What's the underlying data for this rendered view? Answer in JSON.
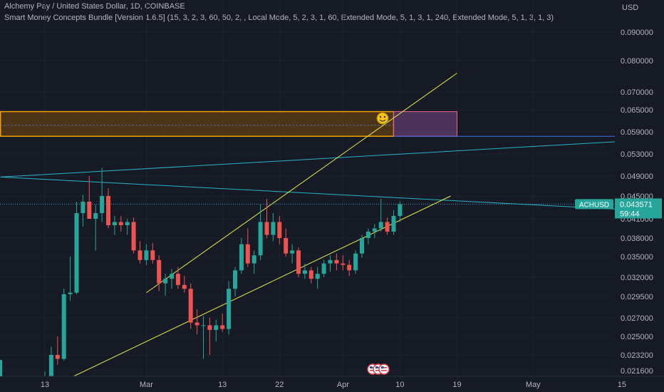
{
  "header": {
    "title": "Alchemy Pay / United States Dollar, 1D, COINBASE",
    "indicator": "Smart Money Concepts Bundle [Version 1.6.5] (15, 3, 2, 3, 60, 50, 2, , Local Mode, 5, 2, 3, 1, 60, Extended Mode, 5, 1, 3, 1, 240, Extended Mode, 5, 1, 3, 1, 3)"
  },
  "price_axis": {
    "currency": "USD",
    "ticks": [
      "0.090000",
      "0.080000",
      "0.070000",
      "0.065000",
      "0.059000",
      "0.053000",
      "0.049000",
      "0.045000",
      "0.041000",
      "0.038000",
      "0.035000",
      "0.032000",
      "0.029500",
      "0.027000",
      "0.025000",
      "0.023200",
      "0.021600"
    ]
  },
  "time_axis": {
    "labels": [
      "13",
      "Mar",
      "13",
      "22",
      "Apr",
      "10",
      "19",
      "May",
      "15"
    ]
  },
  "symbol_badge": {
    "symbol": "ACHUSD",
    "price": "0.043571",
    "countdown": "59:44"
  },
  "colors": {
    "background": "#161a25",
    "grid": "#1f2330",
    "up": "#26a69a",
    "down": "#ef5350",
    "channel": "#e8e84a",
    "trendline": "#26b3c9",
    "order_block_border": "#f0a000",
    "order_block_fill": "#7a4a0c",
    "pink_box": "#f06090",
    "blue_line": "#3f6ff0",
    "price_line": "#3aa0d8"
  },
  "chart_data": {
    "type": "candlestick",
    "symbol": "ACHUSD",
    "timeframe": "1D",
    "exchange": "COINBASE",
    "last_price": 0.043571,
    "candles": [
      {
        "date": "2023-02-12",
        "open": 0.0196,
        "high": 0.0205,
        "low": 0.0185,
        "close": 0.0199
      },
      {
        "date": "2023-02-13",
        "open": 0.0199,
        "high": 0.0215,
        "low": 0.0192,
        "close": 0.0206
      },
      {
        "date": "2023-02-14",
        "open": 0.0206,
        "high": 0.024,
        "low": 0.0202,
        "close": 0.0232
      },
      {
        "date": "2023-02-15",
        "open": 0.0232,
        "high": 0.025,
        "low": 0.0222,
        "close": 0.0228
      },
      {
        "date": "2023-02-16",
        "open": 0.0228,
        "high": 0.0305,
        "low": 0.0226,
        "close": 0.0298
      },
      {
        "date": "2023-02-17",
        "open": 0.0298,
        "high": 0.035,
        "low": 0.029,
        "close": 0.03
      },
      {
        "date": "2023-02-18",
        "open": 0.03,
        "high": 0.044,
        "low": 0.0298,
        "close": 0.042
      },
      {
        "date": "2023-02-19",
        "open": 0.042,
        "high": 0.0452,
        "low": 0.0398,
        "close": 0.044
      },
      {
        "date": "2023-02-20",
        "open": 0.044,
        "high": 0.049,
        "low": 0.041,
        "close": 0.041
      },
      {
        "date": "2023-02-21",
        "open": 0.041,
        "high": 0.0435,
        "low": 0.036,
        "close": 0.042
      },
      {
        "date": "2023-02-22",
        "open": 0.042,
        "high": 0.0505,
        "low": 0.0405,
        "close": 0.045
      },
      {
        "date": "2023-02-23",
        "open": 0.045,
        "high": 0.0465,
        "low": 0.0395,
        "close": 0.04
      },
      {
        "date": "2023-02-24",
        "open": 0.04,
        "high": 0.0415,
        "low": 0.0385,
        "close": 0.0405
      },
      {
        "date": "2023-02-25",
        "open": 0.0405,
        "high": 0.0415,
        "low": 0.039,
        "close": 0.04
      },
      {
        "date": "2023-02-26",
        "open": 0.04,
        "high": 0.041,
        "low": 0.0385,
        "close": 0.0405
      },
      {
        "date": "2023-02-27",
        "open": 0.0405,
        "high": 0.0412,
        "low": 0.0355,
        "close": 0.036
      },
      {
        "date": "2023-02-28",
        "open": 0.036,
        "high": 0.0375,
        "low": 0.034,
        "close": 0.0345
      },
      {
        "date": "2023-03-01",
        "open": 0.0345,
        "high": 0.037,
        "low": 0.0338,
        "close": 0.036
      },
      {
        "date": "2023-03-02",
        "open": 0.036,
        "high": 0.0372,
        "low": 0.034,
        "close": 0.0345
      },
      {
        "date": "2023-03-03",
        "open": 0.0345,
        "high": 0.0352,
        "low": 0.0302,
        "close": 0.0312
      },
      {
        "date": "2023-03-04",
        "open": 0.0312,
        "high": 0.0325,
        "low": 0.0296,
        "close": 0.0318
      },
      {
        "date": "2023-03-05",
        "open": 0.0318,
        "high": 0.0332,
        "low": 0.0305,
        "close": 0.0325
      },
      {
        "date": "2023-03-06",
        "open": 0.0325,
        "high": 0.0335,
        "low": 0.0305,
        "close": 0.031
      },
      {
        "date": "2023-03-07",
        "open": 0.031,
        "high": 0.0322,
        "low": 0.03,
        "close": 0.0305
      },
      {
        "date": "2023-03-08",
        "open": 0.0305,
        "high": 0.0312,
        "low": 0.0258,
        "close": 0.0265
      },
      {
        "date": "2023-03-09",
        "open": 0.0265,
        "high": 0.028,
        "low": 0.0252,
        "close": 0.0262
      },
      {
        "date": "2023-03-10",
        "open": 0.0262,
        "high": 0.0272,
        "low": 0.0228,
        "close": 0.0262
      },
      {
        "date": "2023-03-11",
        "open": 0.0262,
        "high": 0.027,
        "low": 0.0232,
        "close": 0.0257
      },
      {
        "date": "2023-03-12",
        "open": 0.0257,
        "high": 0.0268,
        "low": 0.0245,
        "close": 0.0262
      },
      {
        "date": "2023-03-13",
        "open": 0.0262,
        "high": 0.0275,
        "low": 0.0255,
        "close": 0.0258
      },
      {
        "date": "2023-03-14",
        "open": 0.0258,
        "high": 0.0315,
        "low": 0.0252,
        "close": 0.0305
      },
      {
        "date": "2023-03-15",
        "open": 0.0305,
        "high": 0.0335,
        "low": 0.0295,
        "close": 0.033
      },
      {
        "date": "2023-03-16",
        "open": 0.033,
        "high": 0.038,
        "low": 0.0325,
        "close": 0.037
      },
      {
        "date": "2023-03-17",
        "open": 0.037,
        "high": 0.0395,
        "low": 0.0335,
        "close": 0.034
      },
      {
        "date": "2023-03-18",
        "open": 0.034,
        "high": 0.036,
        "low": 0.0325,
        "close": 0.0352
      },
      {
        "date": "2023-03-19",
        "open": 0.0352,
        "high": 0.0435,
        "low": 0.0345,
        "close": 0.0405
      },
      {
        "date": "2023-03-20",
        "open": 0.0405,
        "high": 0.0445,
        "low": 0.038,
        "close": 0.0385
      },
      {
        "date": "2023-03-21",
        "open": 0.0385,
        "high": 0.042,
        "low": 0.0375,
        "close": 0.0405
      },
      {
        "date": "2023-03-22",
        "open": 0.0405,
        "high": 0.0415,
        "low": 0.037,
        "close": 0.038
      },
      {
        "date": "2023-03-23",
        "open": 0.038,
        "high": 0.0395,
        "low": 0.035,
        "close": 0.0355
      },
      {
        "date": "2023-03-24",
        "open": 0.0355,
        "high": 0.037,
        "low": 0.034,
        "close": 0.036
      },
      {
        "date": "2023-03-25",
        "open": 0.036,
        "high": 0.0365,
        "low": 0.032,
        "close": 0.0325
      },
      {
        "date": "2023-03-26",
        "open": 0.0325,
        "high": 0.034,
        "low": 0.0318,
        "close": 0.033
      },
      {
        "date": "2023-03-27",
        "open": 0.033,
        "high": 0.0335,
        "low": 0.0312,
        "close": 0.0318
      },
      {
        "date": "2023-03-28",
        "open": 0.0318,
        "high": 0.0335,
        "low": 0.0305,
        "close": 0.0325
      },
      {
        "date": "2023-03-29",
        "open": 0.0325,
        "high": 0.0345,
        "low": 0.032,
        "close": 0.034
      },
      {
        "date": "2023-03-30",
        "open": 0.034,
        "high": 0.0352,
        "low": 0.0328,
        "close": 0.0345
      },
      {
        "date": "2023-03-31",
        "open": 0.0345,
        "high": 0.0355,
        "low": 0.033,
        "close": 0.034
      },
      {
        "date": "2023-04-01",
        "open": 0.034,
        "high": 0.0352,
        "low": 0.033,
        "close": 0.0338
      },
      {
        "date": "2023-04-02",
        "open": 0.0338,
        "high": 0.0345,
        "low": 0.0322,
        "close": 0.033
      },
      {
        "date": "2023-04-03",
        "open": 0.033,
        "high": 0.036,
        "low": 0.0325,
        "close": 0.0355
      },
      {
        "date": "2023-04-04",
        "open": 0.0355,
        "high": 0.0385,
        "low": 0.0348,
        "close": 0.038
      },
      {
        "date": "2023-04-05",
        "open": 0.038,
        "high": 0.0395,
        "low": 0.037,
        "close": 0.039
      },
      {
        "date": "2023-04-06",
        "open": 0.039,
        "high": 0.0402,
        "low": 0.038,
        "close": 0.0395
      },
      {
        "date": "2023-04-07",
        "open": 0.0395,
        "high": 0.0445,
        "low": 0.039,
        "close": 0.0405
      },
      {
        "date": "2023-04-08",
        "open": 0.0405,
        "high": 0.0412,
        "low": 0.0385,
        "close": 0.039
      },
      {
        "date": "2023-04-09",
        "open": 0.039,
        "high": 0.0425,
        "low": 0.0385,
        "close": 0.0415
      },
      {
        "date": "2023-04-10",
        "open": 0.0415,
        "high": 0.044,
        "low": 0.0405,
        "close": 0.043571
      }
    ],
    "price_ticks": [
      0.09,
      0.08,
      0.07,
      0.065,
      0.059,
      0.053,
      0.049,
      0.045,
      0.041,
      0.038,
      0.035,
      0.032,
      0.0295,
      0.027,
      0.025,
      0.0232,
      0.0216
    ],
    "time_ticks": [
      {
        "label": "13",
        "date": "2023-02-13"
      },
      {
        "label": "Mar",
        "date": "2023-03-01"
      },
      {
        "label": "13",
        "date": "2023-03-13"
      },
      {
        "label": "22",
        "date": "2023-03-22"
      },
      {
        "label": "Apr",
        "date": "2023-04-01"
      },
      {
        "label": "10",
        "date": "2023-04-10"
      },
      {
        "label": "19",
        "date": "2023-04-19"
      },
      {
        "label": "May",
        "date": "2023-05-01"
      },
      {
        "label": "15",
        "date": "2023-05-15"
      }
    ],
    "annotations": {
      "order_block": {
        "from": "2023-02-06",
        "to": "2023-04-09",
        "top": 0.0645,
        "bottom": 0.0578,
        "mid": 0.0608
      },
      "pink_box": {
        "from": "2023-04-09",
        "to": "2023-04-19",
        "top": 0.0645,
        "bottom": 0.0578
      },
      "channel_upper": [
        {
          "date": "2023-03-01",
          "price": 0.03
        },
        {
          "date": "2023-04-19",
          "price": 0.076
        }
      ],
      "channel_lower": [
        {
          "date": "2023-02-11",
          "price": 0.019
        },
        {
          "date": "2023-04-18",
          "price": 0.045
        }
      ],
      "trend_up": [
        {
          "date": "2023-02-06",
          "price": 0.0488
        },
        {
          "date": "2023-05-26",
          "price": 0.0575
        }
      ],
      "trend_down": [
        {
          "date": "2023-02-06",
          "price": 0.0488
        },
        {
          "date": "2023-05-26",
          "price": 0.042
        }
      ],
      "blue_line": {
        "from": "2023-04-09",
        "to": "2023-05-26",
        "price": 0.0578
      }
    }
  }
}
